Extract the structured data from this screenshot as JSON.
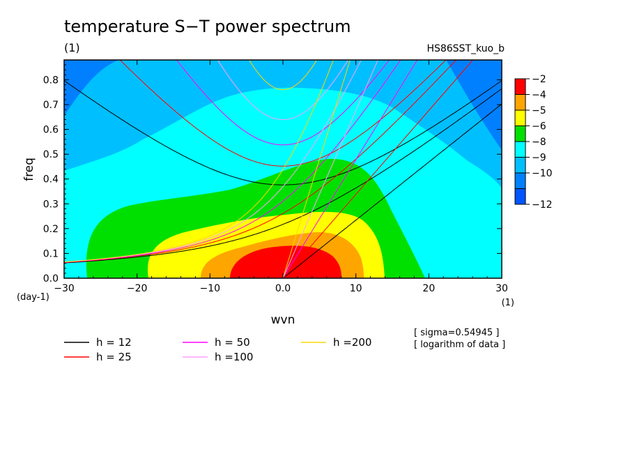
{
  "chart_data": {
    "type": "heatmap",
    "title": "temperature S−T power spectrum",
    "subtitle_left": "(1)",
    "subtitle_right": "HS86SST_kuo_b",
    "xlabel": "wvn",
    "ylabel": "freq",
    "x_unit": "(1)",
    "y_unit": "(day-1)",
    "xlim": [
      -30,
      30
    ],
    "ylim": [
      0,
      0.88
    ],
    "x_ticks": [
      -30,
      -20,
      -10,
      0,
      10,
      20,
      30
    ],
    "x_tick_labels": [
      "−30",
      "−20",
      "−10",
      "0.0",
      "10",
      "20",
      "30"
    ],
    "y_ticks": [
      0,
      0.1,
      0.2,
      0.3,
      0.4,
      0.5,
      0.6,
      0.7,
      0.8
    ],
    "y_tick_labels": [
      "0.0",
      "0.1",
      "0.2",
      "0.3",
      "0.4",
      "0.5",
      "0.6",
      "0.7",
      "0.8"
    ],
    "colorbar": {
      "labels": [
        "−2",
        "−4",
        "−5",
        "−6",
        "−8",
        "−9",
        "−10",
        "−12"
      ],
      "colors": [
        "#ff0000",
        "#ffa500",
        "#ffff00",
        "#00e000",
        "#00ffff",
        "#00bfff",
        "#0080ff",
        "#0055ff"
      ]
    },
    "dispersion_curves": [
      {
        "label": "h = 12",
        "h": 12,
        "color": "#000000"
      },
      {
        "label": "h = 25",
        "h": 25,
        "color": "#ff0000"
      },
      {
        "label": "h = 50",
        "h": 50,
        "color": "#ff00ff"
      },
      {
        "label": "h =100",
        "h": 100,
        "color": "#ffa0ff"
      },
      {
        "label": "h =200",
        "h": 200,
        "color": "#ffd700"
      }
    ],
    "notes": [
      "[ sigma=0.54945 ]",
      "[ logarithm of data ]"
    ]
  }
}
